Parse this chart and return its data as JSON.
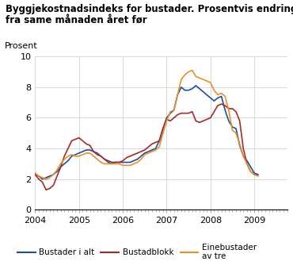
{
  "title_line1": "Byggjekostnadsindeks for bustader. Prosentvis endring",
  "title_line2": "fra same månaden året før",
  "ylabel": "Prosent",
  "ylim": [
    0,
    10
  ],
  "yticks": [
    0,
    2,
    4,
    6,
    8,
    10
  ],
  "xlim": [
    2004.0,
    2009.75
  ],
  "xticks": [
    2004,
    2005,
    2006,
    2007,
    2008,
    2009
  ],
  "legend": [
    "Bustader i alt",
    "Bustadblokk",
    "Einebustader\nav tre"
  ],
  "colors": {
    "bustader": "#1f4e9e",
    "blokk": "#a52a2a",
    "eine": "#e8902a"
  },
  "bustader": [
    2.3,
    2.2,
    2.0,
    2.1,
    2.2,
    2.3,
    2.5,
    2.8,
    3.0,
    3.2,
    3.5,
    3.6,
    3.7,
    3.8,
    3.9,
    3.9,
    3.8,
    3.7,
    3.5,
    3.3,
    3.2,
    3.1,
    3.1,
    3.1,
    3.1,
    3.1,
    3.1,
    3.2,
    3.3,
    3.5,
    3.7,
    3.8,
    3.9,
    4.0,
    4.5,
    5.3,
    6.0,
    6.3,
    6.5,
    7.5,
    8.0,
    7.8,
    7.8,
    7.9,
    8.1,
    7.9,
    7.7,
    7.5,
    7.3,
    7.1,
    7.3,
    7.4,
    6.5,
    5.8,
    5.4,
    5.3,
    4.2,
    3.5,
    3.2,
    2.8,
    2.4,
    2.3
  ],
  "blokk": [
    2.3,
    2.0,
    1.8,
    1.3,
    1.4,
    1.6,
    2.2,
    2.8,
    3.5,
    4.0,
    4.5,
    4.6,
    4.7,
    4.5,
    4.3,
    4.2,
    3.8,
    3.6,
    3.5,
    3.3,
    3.1,
    3.0,
    3.1,
    3.1,
    3.2,
    3.4,
    3.5,
    3.6,
    3.7,
    3.8,
    3.9,
    4.1,
    4.3,
    4.4,
    4.5,
    5.3,
    5.9,
    5.8,
    6.0,
    6.2,
    6.3,
    6.3,
    6.3,
    6.4,
    5.8,
    5.7,
    5.8,
    5.9,
    6.0,
    6.4,
    6.8,
    6.9,
    6.8,
    6.6,
    6.6,
    6.4,
    5.8,
    4.0,
    3.0,
    2.5,
    2.3,
    2.3
  ],
  "eine": [
    2.4,
    2.2,
    2.1,
    2.0,
    2.1,
    2.3,
    2.6,
    3.0,
    3.3,
    3.5,
    3.6,
    3.5,
    3.5,
    3.6,
    3.7,
    3.7,
    3.5,
    3.3,
    3.1,
    3.0,
    3.0,
    3.0,
    3.0,
    3.0,
    2.9,
    2.9,
    2.9,
    3.0,
    3.1,
    3.3,
    3.6,
    3.7,
    3.8,
    3.9,
    4.1,
    5.0,
    5.8,
    6.4,
    6.5,
    7.5,
    8.5,
    8.8,
    9.0,
    9.1,
    8.7,
    8.6,
    8.5,
    8.4,
    8.3,
    7.8,
    7.5,
    7.6,
    7.4,
    6.5,
    5.2,
    5.0,
    4.3,
    3.5,
    3.0,
    2.5,
    2.3,
    2.2
  ]
}
